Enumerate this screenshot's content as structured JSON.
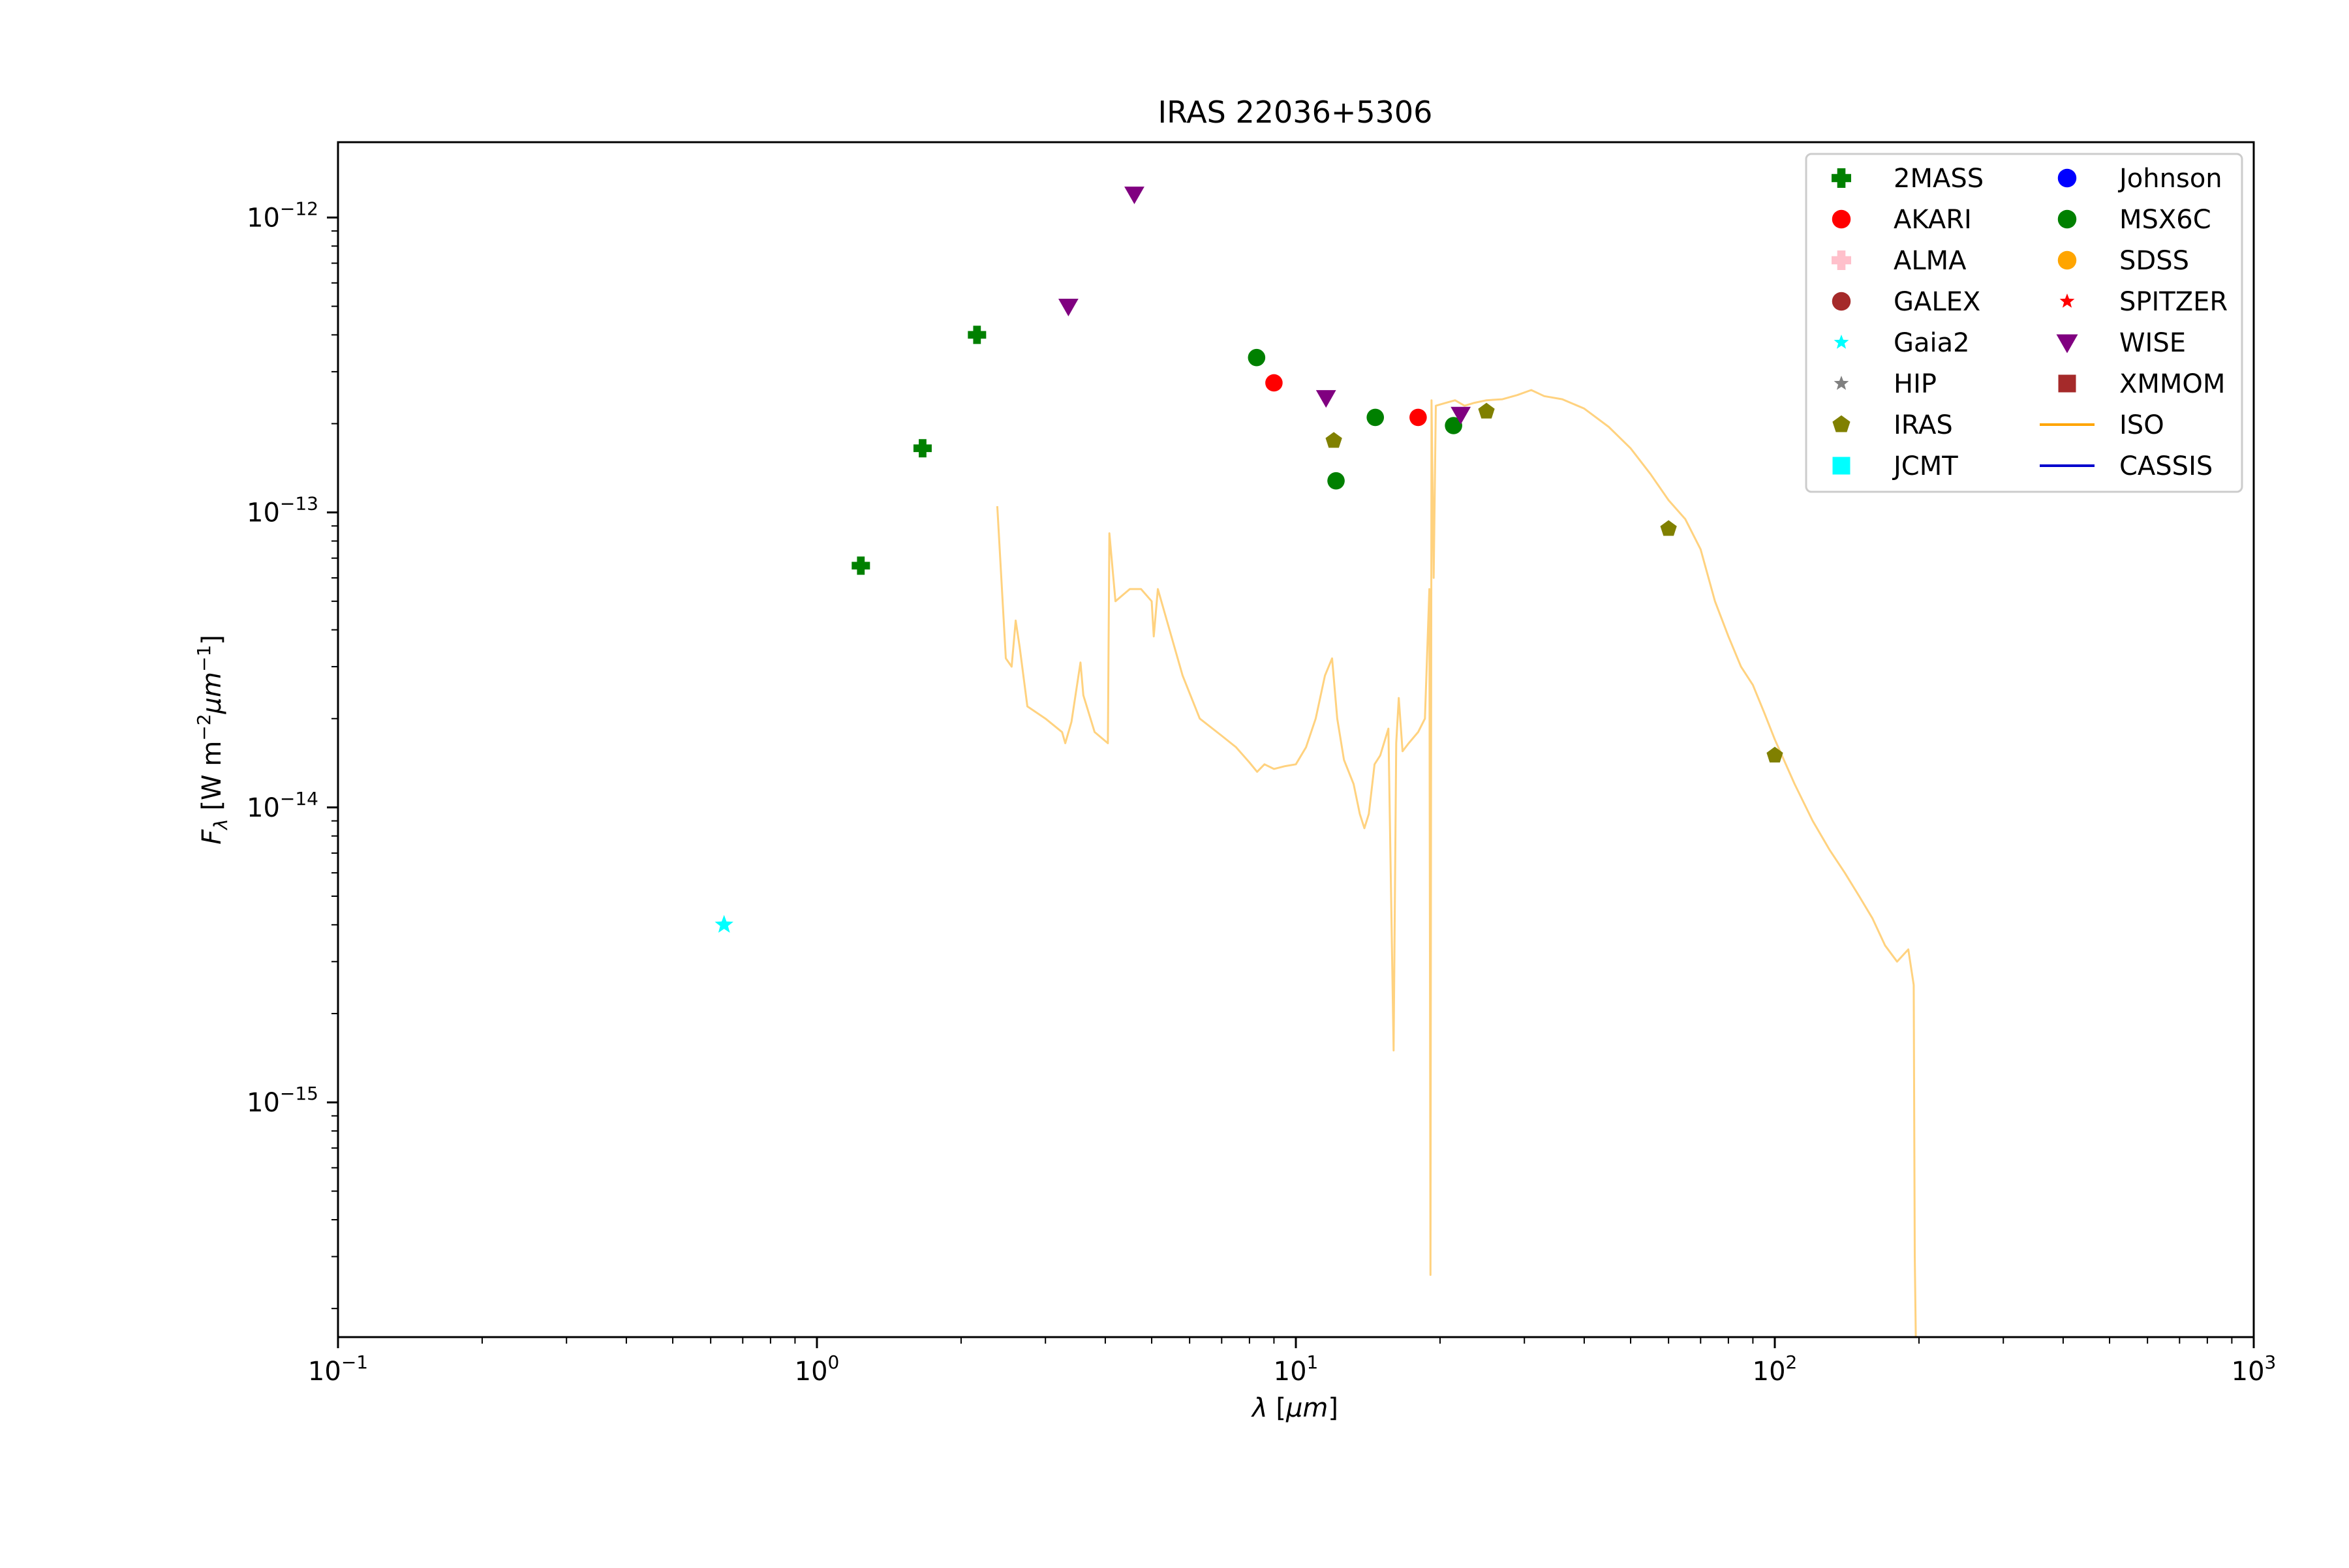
{
  "chart_data": {
    "type": "scatter",
    "title": "IRAS 22036+5306",
    "xlabel": "λ [μm]",
    "ylabel": "F_λ [W m^-2 μm^-1]",
    "xscale": "log",
    "yscale": "log",
    "xlim": [
      0.1,
      1000
    ],
    "ylim": [
      1.6e-16,
      1.8e-12
    ],
    "x_ticks": [
      {
        "value": 0.1,
        "mantissa": "10",
        "exp": "−1"
      },
      {
        "value": 1,
        "mantissa": "10",
        "exp": "0"
      },
      {
        "value": 10,
        "mantissa": "10",
        "exp": "1"
      },
      {
        "value": 100,
        "mantissa": "10",
        "exp": "2"
      },
      {
        "value": 1000,
        "mantissa": "10",
        "exp": "3"
      }
    ],
    "y_ticks": [
      {
        "value": 1e-15,
        "mantissa": "10",
        "exp": "−15"
      },
      {
        "value": 1e-14,
        "mantissa": "10",
        "exp": "−14"
      },
      {
        "value": 1e-13,
        "mantissa": "10",
        "exp": "−13"
      },
      {
        "value": 1e-12,
        "mantissa": "10",
        "exp": "−12"
      }
    ],
    "grid": false,
    "legend_position": "top-right",
    "legend": [
      {
        "label": "2MASS",
        "marker": "plus",
        "color": "#008000"
      },
      {
        "label": "AKARI",
        "marker": "circle",
        "color": "#ff0000"
      },
      {
        "label": "ALMA",
        "marker": "plus",
        "color": "#ffc0cb"
      },
      {
        "label": "GALEX",
        "marker": "circle",
        "color": "#a52a2a"
      },
      {
        "label": "Gaia2",
        "marker": "star",
        "color": "#00ffff"
      },
      {
        "label": "HIP",
        "marker": "star",
        "color": "#808080"
      },
      {
        "label": "IRAS",
        "marker": "pentagon",
        "color": "#808000"
      },
      {
        "label": "JCMT",
        "marker": "square",
        "color": "#00ffff"
      },
      {
        "label": "Johnson",
        "marker": "circle",
        "color": "#0000ff"
      },
      {
        "label": "MSX6C",
        "marker": "circle",
        "color": "#008000"
      },
      {
        "label": "SDSS",
        "marker": "circle",
        "color": "#ffa500"
      },
      {
        "label": "SPITZER",
        "marker": "star",
        "color": "#ff0000"
      },
      {
        "label": "WISE",
        "marker": "triangle-down",
        "color": "#800080"
      },
      {
        "label": "XMMOM",
        "marker": "square",
        "color": "#a52a2a"
      },
      {
        "label": "ISO",
        "marker": "line",
        "color": "#ffa500"
      },
      {
        "label": "CASSIS",
        "marker": "line",
        "color": "#0000cd"
      }
    ],
    "series": [
      {
        "name": "2MASS",
        "marker": "plus",
        "color": "#008000",
        "points": [
          [
            1.235,
            6.6e-14
          ],
          [
            1.662,
            1.65e-13
          ],
          [
            2.159,
            4e-13
          ]
        ]
      },
      {
        "name": "AKARI",
        "marker": "circle",
        "color": "#ff0000",
        "points": [
          [
            9.0,
            2.75e-13
          ],
          [
            18.0,
            2.1e-13
          ]
        ]
      },
      {
        "name": "Gaia2",
        "marker": "star",
        "color": "#00ffff",
        "points": [
          [
            0.64,
            4e-15
          ]
        ]
      },
      {
        "name": "IRAS",
        "marker": "pentagon",
        "color": "#808000",
        "points": [
          [
            12.0,
            1.75e-13
          ],
          [
            25.0,
            2.2e-13
          ],
          [
            60.0,
            8.8e-14
          ],
          [
            100.0,
            1.5e-14
          ]
        ]
      },
      {
        "name": "MSX6C",
        "marker": "circle",
        "color": "#008000",
        "points": [
          [
            8.28,
            3.35e-13
          ],
          [
            12.13,
            1.28e-13
          ],
          [
            14.65,
            2.1e-13
          ],
          [
            21.34,
            1.97e-13
          ]
        ]
      },
      {
        "name": "WISE",
        "marker": "triangle-down",
        "color": "#800080",
        "points": [
          [
            3.35,
            5e-13
          ],
          [
            4.6,
            1.2e-12
          ],
          [
            11.56,
            2.45e-13
          ],
          [
            22.09,
            2.15e-13
          ]
        ]
      }
    ],
    "iso_spectrum": {
      "name": "ISO",
      "color": "#ffa500",
      "opacity": 0.5,
      "points": [
        [
          2.38,
          1.05e-13
        ],
        [
          2.42,
          6.5e-14
        ],
        [
          2.48,
          3.2e-14
        ],
        [
          2.55,
          3e-14
        ],
        [
          2.6,
          4.3e-14
        ],
        [
          2.65,
          3.5e-14
        ],
        [
          2.75,
          2.2e-14
        ],
        [
          3.0,
          2e-14
        ],
        [
          3.25,
          1.8e-14
        ],
        [
          3.3,
          1.65e-14
        ],
        [
          3.4,
          1.95e-14
        ],
        [
          3.55,
          3.1e-14
        ],
        [
          3.6,
          2.4e-14
        ],
        [
          3.8,
          1.8e-14
        ],
        [
          4.05,
          1.65e-14
        ],
        [
          4.08,
          8.5e-14
        ],
        [
          4.2,
          5e-14
        ],
        [
          4.5,
          5.5e-14
        ],
        [
          4.75,
          5.5e-14
        ],
        [
          5.0,
          5e-14
        ],
        [
          5.05,
          3.8e-14
        ],
        [
          5.15,
          5.5e-14
        ],
        [
          5.4,
          4.2e-14
        ],
        [
          5.8,
          2.8e-14
        ],
        [
          6.3,
          2e-14
        ],
        [
          7.0,
          1.75e-14
        ],
        [
          7.5,
          1.6e-14
        ],
        [
          8.0,
          1.42e-14
        ],
        [
          8.3,
          1.32e-14
        ],
        [
          8.6,
          1.4e-14
        ],
        [
          9.0,
          1.35e-14
        ],
        [
          9.5,
          1.38e-14
        ],
        [
          10.0,
          1.4e-14
        ],
        [
          10.5,
          1.6e-14
        ],
        [
          11.0,
          2e-14
        ],
        [
          11.5,
          2.8e-14
        ],
        [
          11.9,
          3.2e-14
        ],
        [
          12.2,
          2e-14
        ],
        [
          12.6,
          1.45e-14
        ],
        [
          13.2,
          1.2e-14
        ],
        [
          13.6,
          9.5e-15
        ],
        [
          13.9,
          8.5e-15
        ],
        [
          14.2,
          9.5e-15
        ],
        [
          14.6,
          1.4e-14
        ],
        [
          15.0,
          1.5e-14
        ],
        [
          15.6,
          1.85e-14
        ],
        [
          16.0,
          1.5e-15
        ],
        [
          16.2,
          1.65e-14
        ],
        [
          16.4,
          2.35e-14
        ],
        [
          16.7,
          1.55e-14
        ],
        [
          17.2,
          1.65e-14
        ],
        [
          18.0,
          1.8e-14
        ],
        [
          18.6,
          2e-14
        ],
        [
          19.0,
          5.5e-14
        ],
        [
          19.1,
          2.6e-16
        ],
        [
          19.2,
          2.4e-13
        ],
        [
          19.4,
          6e-14
        ],
        [
          19.6,
          2.3e-13
        ],
        [
          20.5,
          2.35e-13
        ],
        [
          21.5,
          2.4e-13
        ],
        [
          22.5,
          2.3e-13
        ],
        [
          23.5,
          2.35e-13
        ],
        [
          25.0,
          2.4e-13
        ],
        [
          27.0,
          2.42e-13
        ],
        [
          29.0,
          2.5e-13
        ],
        [
          31.0,
          2.6e-13
        ],
        [
          33.0,
          2.48e-13
        ],
        [
          36.0,
          2.42e-13
        ],
        [
          40.0,
          2.25e-13
        ],
        [
          45.0,
          1.95e-13
        ],
        [
          50.0,
          1.65e-13
        ],
        [
          55.0,
          1.35e-13
        ],
        [
          60.0,
          1.1e-13
        ],
        [
          65.0,
          9.5e-14
        ],
        [
          70.0,
          7.5e-14
        ],
        [
          75.0,
          5e-14
        ],
        [
          80.0,
          3.8e-14
        ],
        [
          85.0,
          3e-14
        ],
        [
          90.0,
          2.6e-14
        ],
        [
          95.0,
          2.1e-14
        ],
        [
          100.0,
          1.7e-14
        ],
        [
          110.0,
          1.2e-14
        ],
        [
          120.0,
          9e-15
        ],
        [
          130.0,
          7.2e-15
        ],
        [
          140.0,
          6e-15
        ],
        [
          150.0,
          5e-15
        ],
        [
          160.0,
          4.2e-15
        ],
        [
          170.0,
          3.4e-15
        ],
        [
          180.0,
          3e-15
        ],
        [
          190.0,
          3.3e-15
        ],
        [
          195.0,
          2.5e-15
        ],
        [
          196.0,
          3e-16
        ],
        [
          197.0,
          1.6e-16
        ]
      ]
    }
  }
}
